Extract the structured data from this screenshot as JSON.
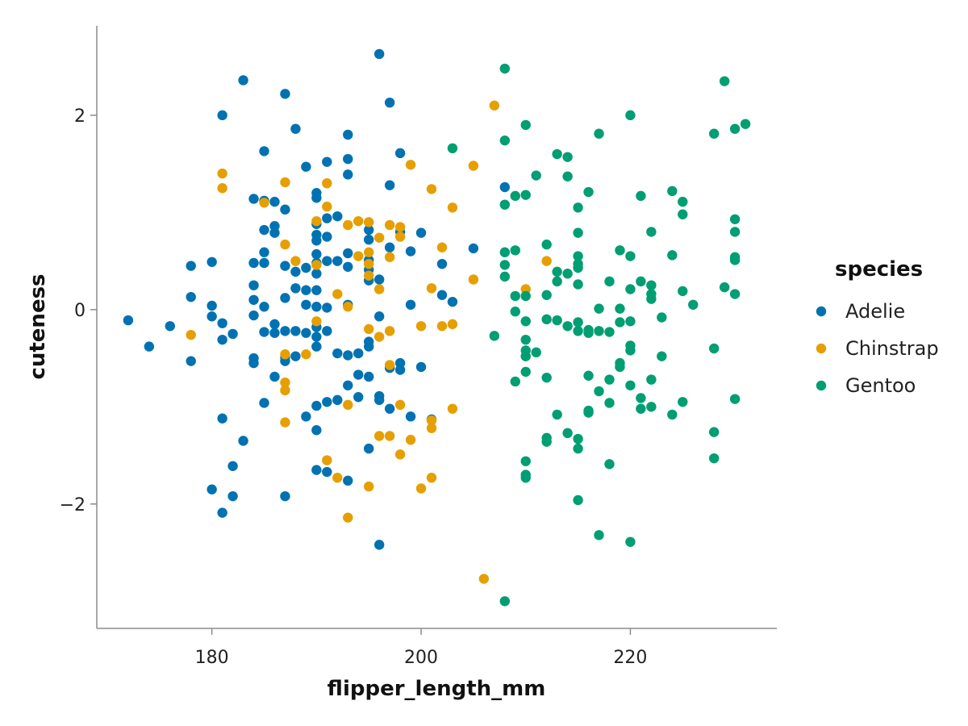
{
  "chart_data": {
    "type": "scatter",
    "title": "",
    "xlabel": "flipper_length_mm",
    "ylabel": "cuteness",
    "xlim": [
      169,
      234
    ],
    "ylim": [
      -3.28,
      2.92
    ],
    "x_ticks": [
      180,
      200,
      220
    ],
    "y_ticks": [
      -2,
      0,
      2
    ],
    "x_tick_labels": [
      "180",
      "200",
      "220"
    ],
    "y_tick_labels": [
      "−2",
      "0",
      "2"
    ],
    "grid": false,
    "legend": {
      "title": "species",
      "position": "right"
    },
    "series": [
      {
        "name": "Adelie",
        "color": "#0072b2",
        "points": [
          [
            172,
            -0.11
          ],
          [
            174,
            -0.38
          ],
          [
            176,
            -0.17
          ],
          [
            178,
            0.45
          ],
          [
            178,
            0.13
          ],
          [
            178,
            -0.53
          ],
          [
            180,
            0.49
          ],
          [
            180,
            0.04
          ],
          [
            180,
            -0.07
          ],
          [
            180,
            -1.85
          ],
          [
            181,
            2.0
          ],
          [
            181,
            -0.14
          ],
          [
            181,
            -0.31
          ],
          [
            181,
            -1.12
          ],
          [
            181,
            -2.09
          ],
          [
            182,
            -0.25
          ],
          [
            182,
            -1.61
          ],
          [
            182,
            -1.92
          ],
          [
            183,
            2.36
          ],
          [
            183,
            -1.35
          ],
          [
            184,
            1.14
          ],
          [
            184,
            0.48
          ],
          [
            184,
            0.25
          ],
          [
            184,
            0.1
          ],
          [
            184,
            -0.06
          ],
          [
            184,
            -0.5
          ],
          [
            184,
            -0.55
          ],
          [
            185,
            1.63
          ],
          [
            185,
            1.12
          ],
          [
            185,
            0.82
          ],
          [
            185,
            0.59
          ],
          [
            185,
            0.48
          ],
          [
            185,
            0.03
          ],
          [
            185,
            -0.23
          ],
          [
            185,
            -0.96
          ],
          [
            186,
            1.11
          ],
          [
            186,
            0.86
          ],
          [
            186,
            0.79
          ],
          [
            186,
            -0.15
          ],
          [
            186,
            -0.24
          ],
          [
            186,
            -0.69
          ],
          [
            187,
            2.22
          ],
          [
            187,
            1.03
          ],
          [
            187,
            0.45
          ],
          [
            187,
            0.12
          ],
          [
            187,
            -0.22
          ],
          [
            187,
            -0.49
          ],
          [
            187,
            -0.53
          ],
          [
            187,
            -1.92
          ],
          [
            188,
            1.86
          ],
          [
            188,
            0.39
          ],
          [
            188,
            0.22
          ],
          [
            188,
            -0.22
          ],
          [
            188,
            -0.48
          ],
          [
            189,
            1.47
          ],
          [
            189,
            0.43
          ],
          [
            189,
            0.2
          ],
          [
            189,
            0.05
          ],
          [
            189,
            -0.24
          ],
          [
            189,
            -1.1
          ],
          [
            190,
            1.2
          ],
          [
            190,
            1.15
          ],
          [
            190,
            0.88
          ],
          [
            190,
            0.77
          ],
          [
            190,
            0.71
          ],
          [
            190,
            0.57
          ],
          [
            190,
            0.48
          ],
          [
            190,
            0.37
          ],
          [
            190,
            0.2
          ],
          [
            190,
            0.03
          ],
          [
            190,
            -0.18
          ],
          [
            190,
            -0.28
          ],
          [
            190,
            -0.38
          ],
          [
            190,
            -0.99
          ],
          [
            190,
            -1.24
          ],
          [
            190,
            -1.65
          ],
          [
            191,
            1.52
          ],
          [
            191,
            0.94
          ],
          [
            191,
            0.75
          ],
          [
            191,
            0.5
          ],
          [
            191,
            0.02
          ],
          [
            191,
            -0.22
          ],
          [
            191,
            -0.95
          ],
          [
            191,
            -1.67
          ],
          [
            192,
            0.96
          ],
          [
            192,
            0.5
          ],
          [
            192,
            -0.45
          ],
          [
            192,
            -0.93
          ],
          [
            193,
            1.8
          ],
          [
            193,
            1.55
          ],
          [
            193,
            1.39
          ],
          [
            193,
            0.58
          ],
          [
            193,
            0.44
          ],
          [
            193,
            0.05
          ],
          [
            193,
            -0.47
          ],
          [
            193,
            -0.78
          ],
          [
            193,
            -1.76
          ],
          [
            194,
            -0.45
          ],
          [
            194,
            -0.67
          ],
          [
            194,
            -0.9
          ],
          [
            195,
            0.82
          ],
          [
            195,
            0.72
          ],
          [
            195,
            0.51
          ],
          [
            195,
            0.41
          ],
          [
            195,
            0.3
          ],
          [
            195,
            -0.33
          ],
          [
            195,
            -0.38
          ],
          [
            195,
            -0.69
          ],
          [
            195,
            -1.43
          ],
          [
            196,
            2.63
          ],
          [
            196,
            0.31
          ],
          [
            196,
            -0.07
          ],
          [
            196,
            -0.89
          ],
          [
            196,
            -0.93
          ],
          [
            196,
            -2.42
          ],
          [
            197,
            2.13
          ],
          [
            197,
            1.28
          ],
          [
            197,
            0.64
          ],
          [
            197,
            -0.6
          ],
          [
            197,
            -1.02
          ],
          [
            198,
            1.61
          ],
          [
            198,
            0.8
          ],
          [
            198,
            -0.55
          ],
          [
            198,
            -0.62
          ],
          [
            199,
            0.6
          ],
          [
            199,
            0.05
          ],
          [
            199,
            -1.1
          ],
          [
            200,
            0.79
          ],
          [
            200,
            -0.59
          ],
          [
            201,
            -1.13
          ],
          [
            202,
            0.47
          ],
          [
            202,
            0.15
          ],
          [
            203,
            0.08
          ],
          [
            205,
            0.63
          ],
          [
            208,
            1.26
          ]
        ]
      },
      {
        "name": "Chinstrap",
        "color": "#e69f00",
        "points": [
          [
            178,
            -0.26
          ],
          [
            181,
            1.4
          ],
          [
            181,
            1.25
          ],
          [
            185,
            1.1
          ],
          [
            187,
            1.31
          ],
          [
            187,
            0.67
          ],
          [
            187,
            -0.46
          ],
          [
            187,
            -0.75
          ],
          [
            187,
            -0.83
          ],
          [
            187,
            -1.16
          ],
          [
            188,
            0.5
          ],
          [
            189,
            -0.46
          ],
          [
            190,
            0.91
          ],
          [
            190,
            0.46
          ],
          [
            190,
            -0.12
          ],
          [
            191,
            1.3
          ],
          [
            191,
            1.06
          ],
          [
            191,
            -1.55
          ],
          [
            192,
            0.16
          ],
          [
            192,
            -1.73
          ],
          [
            193,
            0.87
          ],
          [
            193,
            0.03
          ],
          [
            193,
            -0.98
          ],
          [
            193,
            -2.14
          ],
          [
            194,
            0.91
          ],
          [
            194,
            0.55
          ],
          [
            195,
            0.9
          ],
          [
            195,
            0.59
          ],
          [
            195,
            0.47
          ],
          [
            195,
            0.35
          ],
          [
            195,
            -0.2
          ],
          [
            195,
            -1.82
          ],
          [
            196,
            0.74
          ],
          [
            196,
            0.21
          ],
          [
            196,
            -0.28
          ],
          [
            196,
            -1.3
          ],
          [
            197,
            0.87
          ],
          [
            197,
            0.54
          ],
          [
            197,
            -0.22
          ],
          [
            197,
            -0.57
          ],
          [
            197,
            -1.3
          ],
          [
            198,
            0.85
          ],
          [
            198,
            0.75
          ],
          [
            198,
            -0.98
          ],
          [
            198,
            -1.49
          ],
          [
            199,
            1.49
          ],
          [
            199,
            -1.34
          ],
          [
            200,
            -0.17
          ],
          [
            200,
            -1.84
          ],
          [
            201,
            1.24
          ],
          [
            201,
            0.22
          ],
          [
            201,
            -1.14
          ],
          [
            201,
            -1.22
          ],
          [
            201,
            -1.73
          ],
          [
            202,
            0.64
          ],
          [
            202,
            -0.17
          ],
          [
            203,
            1.05
          ],
          [
            203,
            -0.15
          ],
          [
            203,
            -1.02
          ],
          [
            205,
            1.48
          ],
          [
            205,
            0.31
          ],
          [
            206,
            -2.77
          ],
          [
            207,
            2.1
          ],
          [
            210,
            0.21
          ],
          [
            210,
            -0.48
          ],
          [
            212,
            0.5
          ]
        ]
      },
      {
        "name": "Gentoo",
        "color": "#009e73",
        "points": [
          [
            203,
            1.66
          ],
          [
            207,
            -0.27
          ],
          [
            208,
            2.48
          ],
          [
            208,
            1.74
          ],
          [
            208,
            1.08
          ],
          [
            208,
            0.59
          ],
          [
            208,
            0.46
          ],
          [
            208,
            0.34
          ],
          [
            208,
            -3.0
          ],
          [
            209,
            1.17
          ],
          [
            209,
            0.61
          ],
          [
            209,
            0.14
          ],
          [
            209,
            -0.02
          ],
          [
            209,
            -0.74
          ],
          [
            210,
            1.9
          ],
          [
            210,
            1.18
          ],
          [
            210,
            0.14
          ],
          [
            210,
            -0.12
          ],
          [
            210,
            -0.31
          ],
          [
            210,
            -0.42
          ],
          [
            210,
            -0.48
          ],
          [
            210,
            -0.64
          ],
          [
            210,
            -1.56
          ],
          [
            210,
            -1.7
          ],
          [
            210,
            -1.73
          ],
          [
            211,
            1.38
          ],
          [
            211,
            -0.44
          ],
          [
            212,
            0.67
          ],
          [
            212,
            0.15
          ],
          [
            212,
            -0.1
          ],
          [
            212,
            -0.7
          ],
          [
            212,
            -1.32
          ],
          [
            212,
            -1.36
          ],
          [
            213,
            1.6
          ],
          [
            213,
            0.39
          ],
          [
            213,
            0.29
          ],
          [
            213,
            -0.11
          ],
          [
            213,
            -1.08
          ],
          [
            214,
            1.57
          ],
          [
            214,
            1.37
          ],
          [
            214,
            0.37
          ],
          [
            214,
            -0.17
          ],
          [
            214,
            -1.27
          ],
          [
            215,
            1.05
          ],
          [
            215,
            0.79
          ],
          [
            215,
            0.55
          ],
          [
            215,
            0.47
          ],
          [
            215,
            0.43
          ],
          [
            215,
            0.26
          ],
          [
            215,
            -0.13
          ],
          [
            215,
            -0.22
          ],
          [
            215,
            -1.33
          ],
          [
            215,
            -1.43
          ],
          [
            215,
            -1.96
          ],
          [
            216,
            1.21
          ],
          [
            216,
            -0.21
          ],
          [
            216,
            -0.24
          ],
          [
            216,
            -0.68
          ],
          [
            216,
            -1.04
          ],
          [
            216,
            -1.06
          ],
          [
            217,
            1.81
          ],
          [
            217,
            0.01
          ],
          [
            217,
            -0.22
          ],
          [
            217,
            -0.84
          ],
          [
            217,
            -2.32
          ],
          [
            218,
            0.29
          ],
          [
            218,
            -0.23
          ],
          [
            218,
            -0.72
          ],
          [
            218,
            -0.96
          ],
          [
            218,
            -1.59
          ],
          [
            219,
            0.61
          ],
          [
            219,
            0.01
          ],
          [
            219,
            -0.13
          ],
          [
            219,
            -0.55
          ],
          [
            219,
            -0.59
          ],
          [
            220,
            2.0
          ],
          [
            220,
            0.55
          ],
          [
            220,
            0.21
          ],
          [
            220,
            -0.12
          ],
          [
            220,
            -0.37
          ],
          [
            220,
            -0.42
          ],
          [
            220,
            -0.78
          ],
          [
            220,
            -2.39
          ],
          [
            221,
            1.17
          ],
          [
            221,
            0.29
          ],
          [
            221,
            -0.91
          ],
          [
            221,
            -1.02
          ],
          [
            222,
            0.8
          ],
          [
            222,
            0.25
          ],
          [
            222,
            0.16
          ],
          [
            222,
            0.11
          ],
          [
            222,
            -0.72
          ],
          [
            222,
            -1.0
          ],
          [
            223,
            -0.08
          ],
          [
            223,
            -0.48
          ],
          [
            224,
            1.22
          ],
          [
            224,
            0.56
          ],
          [
            224,
            -1.08
          ],
          [
            225,
            1.11
          ],
          [
            225,
            0.98
          ],
          [
            225,
            0.19
          ],
          [
            225,
            -0.95
          ],
          [
            226,
            0.05
          ],
          [
            228,
            1.81
          ],
          [
            228,
            -0.4
          ],
          [
            228,
            -1.26
          ],
          [
            228,
            -1.53
          ],
          [
            229,
            2.35
          ],
          [
            229,
            0.23
          ],
          [
            230,
            1.86
          ],
          [
            230,
            0.93
          ],
          [
            230,
            0.8
          ],
          [
            230,
            0.54
          ],
          [
            230,
            0.51
          ],
          [
            230,
            0.16
          ],
          [
            230,
            -0.92
          ],
          [
            231,
            1.91
          ]
        ]
      }
    ]
  }
}
